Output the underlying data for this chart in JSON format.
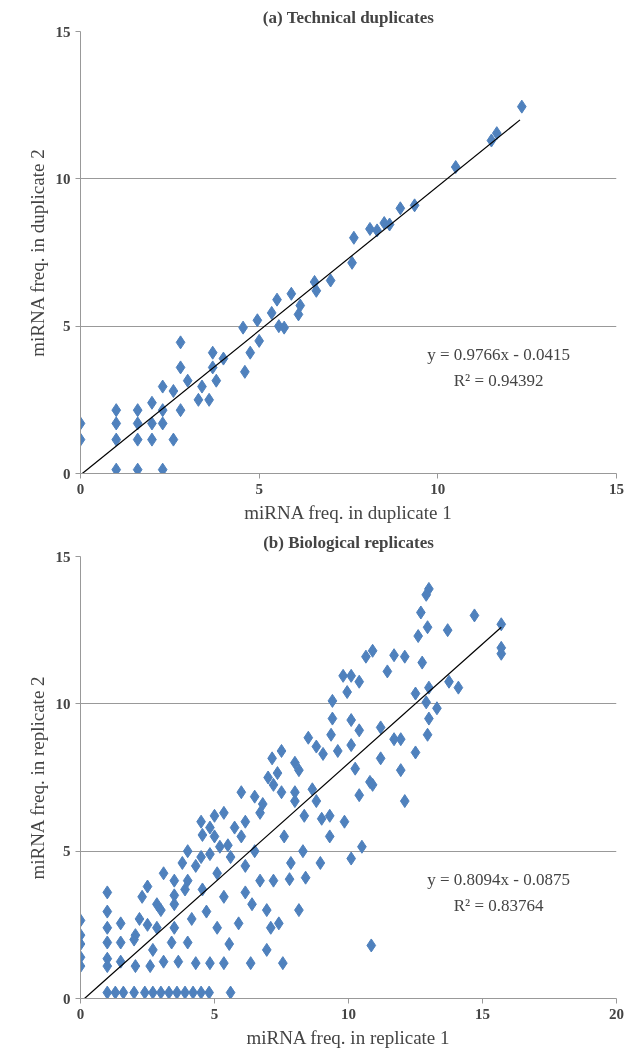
{
  "chart_data": [
    {
      "type": "scatter",
      "title": "(a) Technical duplicates",
      "xlabel": "miRNA freq. in duplicate 1",
      "ylabel": "miRNA freq. in duplicate 2",
      "xlim": [
        0,
        15
      ],
      "ylim": [
        0,
        15
      ],
      "xticks": [
        0,
        5,
        10,
        15
      ],
      "yticks": [
        0,
        5,
        10,
        15
      ],
      "grid": "y",
      "annotations": [
        "y = 0.9766x - 0.0415",
        "R² = 0.94392"
      ],
      "series": [
        {
          "marker": "diamond",
          "color": "#4f81bd",
          "x": [
            0,
            0,
            1.0,
            1.0,
            1.0,
            1.0,
            1.6,
            1.6,
            1.6,
            1.6,
            2.0,
            2.0,
            2.0,
            2.3,
            2.3,
            2.3,
            2.3,
            2.6,
            2.6,
            2.8,
            2.8,
            2.8,
            3.0,
            3.3,
            3.4,
            3.6,
            3.7,
            3.7,
            3.8,
            4.0,
            4.6,
            4.55,
            4.75,
            4.95,
            5.0,
            5.35,
            5.5,
            5.55,
            5.7,
            5.9,
            6.1,
            6.15,
            6.55,
            6.6,
            7.0,
            7.6,
            7.65,
            8.1,
            8.3,
            8.5,
            8.65,
            8.95,
            9.35,
            10.5,
            11.5,
            11.65,
            12.35
          ],
          "values": [
            1.7,
            1.15,
            2.15,
            1.7,
            1.15,
            0.13,
            2.15,
            1.7,
            1.15,
            0.13,
            2.4,
            1.7,
            1.15,
            2.95,
            2.15,
            1.7,
            0.13,
            1.15,
            2.8,
            4.45,
            3.6,
            2.15,
            3.15,
            2.5,
            2.95,
            2.5,
            3.6,
            4.1,
            3.15,
            3.9,
            3.45,
            4.95,
            4.1,
            5.2,
            4.5,
            5.45,
            5.9,
            5.0,
            4.95,
            6.1,
            5.4,
            5.7,
            6.5,
            6.2,
            6.55,
            7.15,
            8.0,
            8.3,
            8.25,
            8.5,
            8.45,
            9.0,
            9.1,
            10.4,
            11.3,
            11.55,
            12.45
          ]
        },
        {
          "type": "line",
          "color": "#000000",
          "x": [
            0.05,
            12.3
          ],
          "values": [
            0.0,
            12.0
          ]
        }
      ]
    },
    {
      "type": "scatter",
      "title": "(b) Biological replicates",
      "xlabel": "miRNA freq. in replicate 1",
      "ylabel": "miRNA freq. in replicate 2",
      "xlim": [
        0,
        20
      ],
      "ylim": [
        0,
        15
      ],
      "xticks": [
        0,
        5,
        10,
        15,
        20
      ],
      "yticks": [
        0,
        5,
        10,
        15
      ],
      "grid": "y",
      "annotations": [
        "y = 0.8094x - 0.0875",
        "R² = 0.83764"
      ],
      "series": [
        {
          "marker": "diamond",
          "color": "#4f81bd",
          "x": [
            13.0,
            12.9,
            12.7,
            14.7,
            15.7,
            13.7,
            12.95,
            12.6,
            15.7,
            15.7,
            10.9,
            10.65,
            11.7,
            12.1,
            12.75,
            11.45,
            9.8,
            10.1,
            10.4,
            9.95,
            13.75,
            14.1,
            13.0,
            12.5,
            13.3,
            12.9,
            13.0,
            12.95,
            9.4,
            9.4,
            10.1,
            10.4,
            11.2,
            11.7,
            11.95,
            12.5,
            11.2,
            11.95,
            10.25,
            10.1,
            10.8,
            10.4,
            12.1,
            10.9,
            8.5,
            9.35,
            8.8,
            7.5,
            7.15,
            8.0,
            8.15,
            9.05,
            9.6,
            7.35,
            7.2,
            8.65,
            8.0,
            6.5,
            6.8,
            8.35,
            8.8,
            9.0,
            9.3,
            9.85,
            9.3,
            10.5,
            10.1,
            8.95,
            8.3,
            7.6,
            7.85,
            7.8,
            8.4,
            8.15,
            7.4,
            7.1,
            6.95,
            7.55,
            6.35,
            5.9,
            5.55,
            5.6,
            10.85,
            6.7,
            7.2,
            6.95,
            6.4,
            6.15,
            5.75,
            5.35,
            4.83,
            4.55,
            5.2,
            6.15,
            6.7,
            5.6,
            4.83,
            4.3,
            3.8,
            3.1,
            3.9,
            4.55,
            5.1,
            5.35,
            6.15,
            3.5,
            2.85,
            2.3,
            1.0,
            2.2,
            2.85,
            3.5,
            4.15,
            4.7,
            5.1,
            4.0,
            3.4,
            2.7,
            2.05,
            1.5,
            1.5,
            1.5,
            1.0,
            1.0,
            1.0,
            1.0,
            1.0,
            2.05,
            2.6,
            3.1,
            3.65,
            4.3,
            4.83,
            5.35,
            0,
            0,
            0,
            0,
            0,
            1.0,
            1.3,
            1.6,
            2.0,
            2.4,
            2.7,
            3.0,
            3.3,
            3.6,
            3.9,
            4.2,
            4.5,
            4.8,
            4.0,
            4.5,
            5.0,
            5.5,
            6.0,
            6.5,
            3.0,
            3.5,
            4.0,
            2.5,
            2.0,
            6.0,
            7.0,
            7.5,
            8.0,
            5.0,
            4.5,
            3.5,
            2.5
          ],
          "values": [
            13.9,
            13.7,
            13.1,
            13.0,
            12.7,
            12.5,
            12.6,
            12.3,
            11.9,
            11.7,
            11.8,
            11.6,
            11.65,
            11.6,
            11.4,
            11.1,
            10.95,
            10.95,
            10.75,
            10.4,
            10.75,
            10.55,
            10.55,
            10.35,
            9.85,
            10.05,
            9.5,
            8.95,
            10.1,
            9.5,
            9.45,
            9.1,
            9.2,
            8.8,
            8.8,
            8.35,
            8.15,
            7.75,
            7.8,
            8.6,
            7.35,
            6.9,
            6.7,
            7.25,
            8.85,
            8.95,
            8.55,
            8.4,
            8.15,
            8.0,
            7.75,
            8.3,
            8.4,
            7.65,
            7.25,
            7.1,
            6.7,
            6.85,
            6.6,
            6.2,
            6.7,
            6.1,
            6.2,
            6.0,
            5.5,
            5.15,
            4.75,
            4.6,
            5.0,
            5.5,
            4.6,
            4.05,
            4.1,
            3.0,
            2.55,
            2.4,
            1.65,
            1.2,
            1.2,
            2.55,
            1.85,
            0.2,
            1.8,
            4.0,
            4.0,
            3.0,
            3.2,
            4.5,
            5.8,
            6.3,
            5.8,
            5.55,
            5.15,
            6.0,
            6.3,
            4.8,
            4.9,
            4.5,
            4.6,
            4.25,
            3.7,
            3.7,
            4.25,
            3.45,
            3.6,
            3.2,
            3.2,
            3.45,
            3.6,
            2.7,
            2.4,
            2.4,
            2.7,
            2.95,
            2.4,
            1.9,
            1.9,
            1.65,
            2.15,
            2.55,
            1.9,
            1.25,
            2.95,
            2.4,
            1.9,
            1.35,
            1.1,
            1.1,
            1.1,
            1.25,
            1.25,
            1.2,
            1.2,
            1.2,
            2.65,
            2.15,
            1.85,
            1.4,
            1.1,
            0.2,
            0.2,
            0.2,
            0.2,
            0.2,
            0.2,
            0.2,
            0.2,
            0.2,
            0.2,
            0.2,
            0.2,
            0.2,
            5.0,
            4.8,
            5.5,
            5.2,
            5.5,
            5.0,
            3.0,
            3.5,
            4.0,
            2.5,
            2.0,
            7.0,
            7.5,
            7.0,
            7.0,
            6.2,
            6.0,
            4.0,
            3.8
          ]
        },
        {
          "type": "line",
          "color": "#000000",
          "x": [
            0.15,
            15.7
          ],
          "values": [
            0.0,
            12.6
          ]
        }
      ]
    }
  ]
}
